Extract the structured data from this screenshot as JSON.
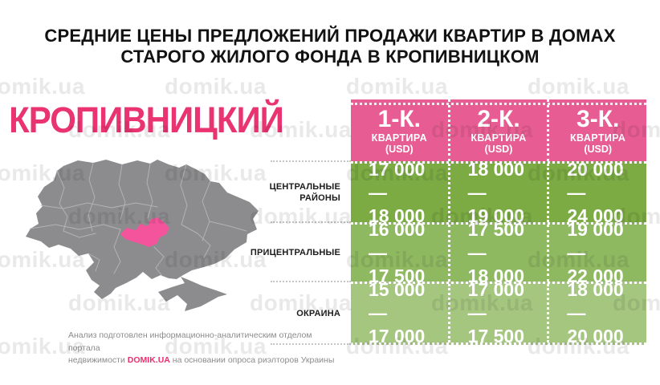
{
  "title": {
    "line1": "СРЕДНИЕ ЦЕНЫ ПРЕДЛОЖЕНИЙ ПРОДАЖИ КВАРТИР В ДОМАХ",
    "line2": "СТАРОГО ЖИЛОГО ФОНДА В КРОПИВНИЦКОМ"
  },
  "city": "КРОПИВНИЦКИЙ",
  "watermark": {
    "text": "domik.ua"
  },
  "table": {
    "columns": [
      {
        "size": "1-К.",
        "sub": "КВАРТИРА",
        "unit": "(USD)"
      },
      {
        "size": "2-К.",
        "sub": "КВАРТИРА",
        "unit": "(USD)"
      },
      {
        "size": "3-К.",
        "sub": "КВАРТИРА",
        "unit": "(USD)"
      }
    ],
    "rows": [
      {
        "label": {
          "line1": "ЦЕНТРАЛЬНЫЕ",
          "line2": "РАЙОНЫ"
        },
        "values": [
          {
            "line1": "17 000 —",
            "line2": "18 000"
          },
          {
            "line1": "18 000 —",
            "line2": "19 000"
          },
          {
            "line1": "20 000 —",
            "line2": "24 000"
          }
        ]
      },
      {
        "label": {
          "line1": "ПРИЦЕНТРАЛЬНЫЕ",
          "line2": ""
        },
        "values": [
          {
            "line1": "16 000 —",
            "line2": "17 500"
          },
          {
            "line1": "17 500 —",
            "line2": "18 000"
          },
          {
            "line1": "19 000 —",
            "line2": "22 000"
          }
        ]
      },
      {
        "label": {
          "line1": "ОКРАИНА",
          "line2": ""
        },
        "values": [
          {
            "line1": "15 000 —",
            "line2": "17 000"
          },
          {
            "line1": "17 000 —",
            "line2": "17 500"
          },
          {
            "line1": "18 000 —",
            "line2": "20 000"
          }
        ]
      }
    ]
  },
  "footer": {
    "line1": "Анализ подготовлен информационно-аналитическим отделом портала",
    "line2_pre": "недвижимости ",
    "brand": "DOMIK.UA",
    "line2_post": " на основании опроса риэлторов Украины"
  },
  "colors": {
    "pink_header": "#e75d93",
    "pink_title": "#e93471",
    "pink_region": "#f4549b",
    "map_gray": "#8c8c8e",
    "map_border": "#b2b3b5",
    "green_row1": "#7cab44",
    "green_row2": "#8eb961",
    "green_row3": "#a5c67f",
    "footer_brand": "#ee2d6e"
  },
  "chart_data": {
    "type": "table",
    "title": "СРЕДНИЕ ЦЕНЫ ПРЕДЛОЖЕНИЙ ПРОДАЖИ КВАРТИР В ДОМАХ СТАРОГО ЖИЛОГО ФОНДА В КРОПИВНИЦКОМ",
    "city": "КРОПИВНИЦКИЙ",
    "unit": "USD",
    "columns": [
      "1-К. КВАРТИРА (USD)",
      "2-К. КВАРТИРА (USD)",
      "3-К. КВАРТИРА (USD)"
    ],
    "rows": [
      {
        "district": "ЦЕНТРАЛЬНЫЕ РАЙОНЫ",
        "ranges": [
          [
            17000,
            18000
          ],
          [
            18000,
            19000
          ],
          [
            20000,
            24000
          ]
        ]
      },
      {
        "district": "ПРИЦЕНТРАЛЬНЫЕ",
        "ranges": [
          [
            16000,
            17500
          ],
          [
            17500,
            18000
          ],
          [
            19000,
            22000
          ]
        ]
      },
      {
        "district": "ОКРАИНА",
        "ranges": [
          [
            15000,
            17000
          ],
          [
            17000,
            17500
          ],
          [
            18000,
            20000
          ]
        ]
      }
    ]
  }
}
